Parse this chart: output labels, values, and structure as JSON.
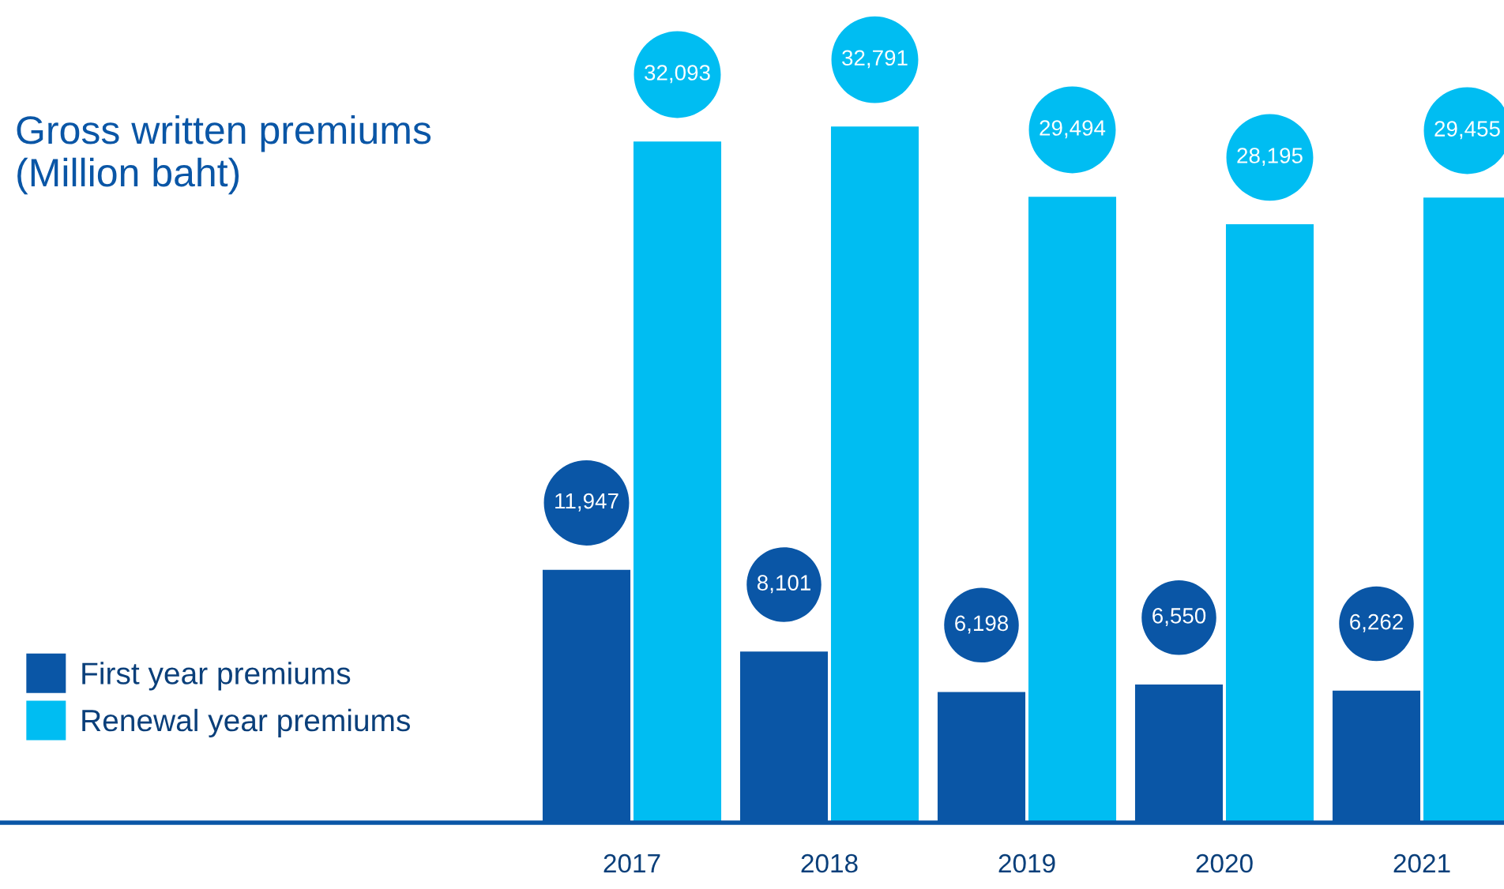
{
  "chart_data": {
    "type": "bar",
    "title": "Gross written premiums\n(Million baht)",
    "categories": [
      "2017",
      "2018",
      "2019",
      "2020",
      "2021"
    ],
    "series": [
      {
        "name": "First year premiums",
        "color": "#0a56a6",
        "values": [
          11947,
          8101,
          6198,
          6550,
          6262
        ],
        "value_labels": [
          "11,947",
          "8,101",
          "6,198",
          "6,550",
          "6,262"
        ]
      },
      {
        "name": "Renewal year premiums",
        "color": "#00bdf2",
        "values": [
          32093,
          32791,
          29494,
          28195,
          29455
        ],
        "value_labels": [
          "32,093",
          "32,791",
          "29,494",
          "28,195",
          "29,455"
        ]
      }
    ],
    "legend": "bottom left",
    "grid": false
  }
}
